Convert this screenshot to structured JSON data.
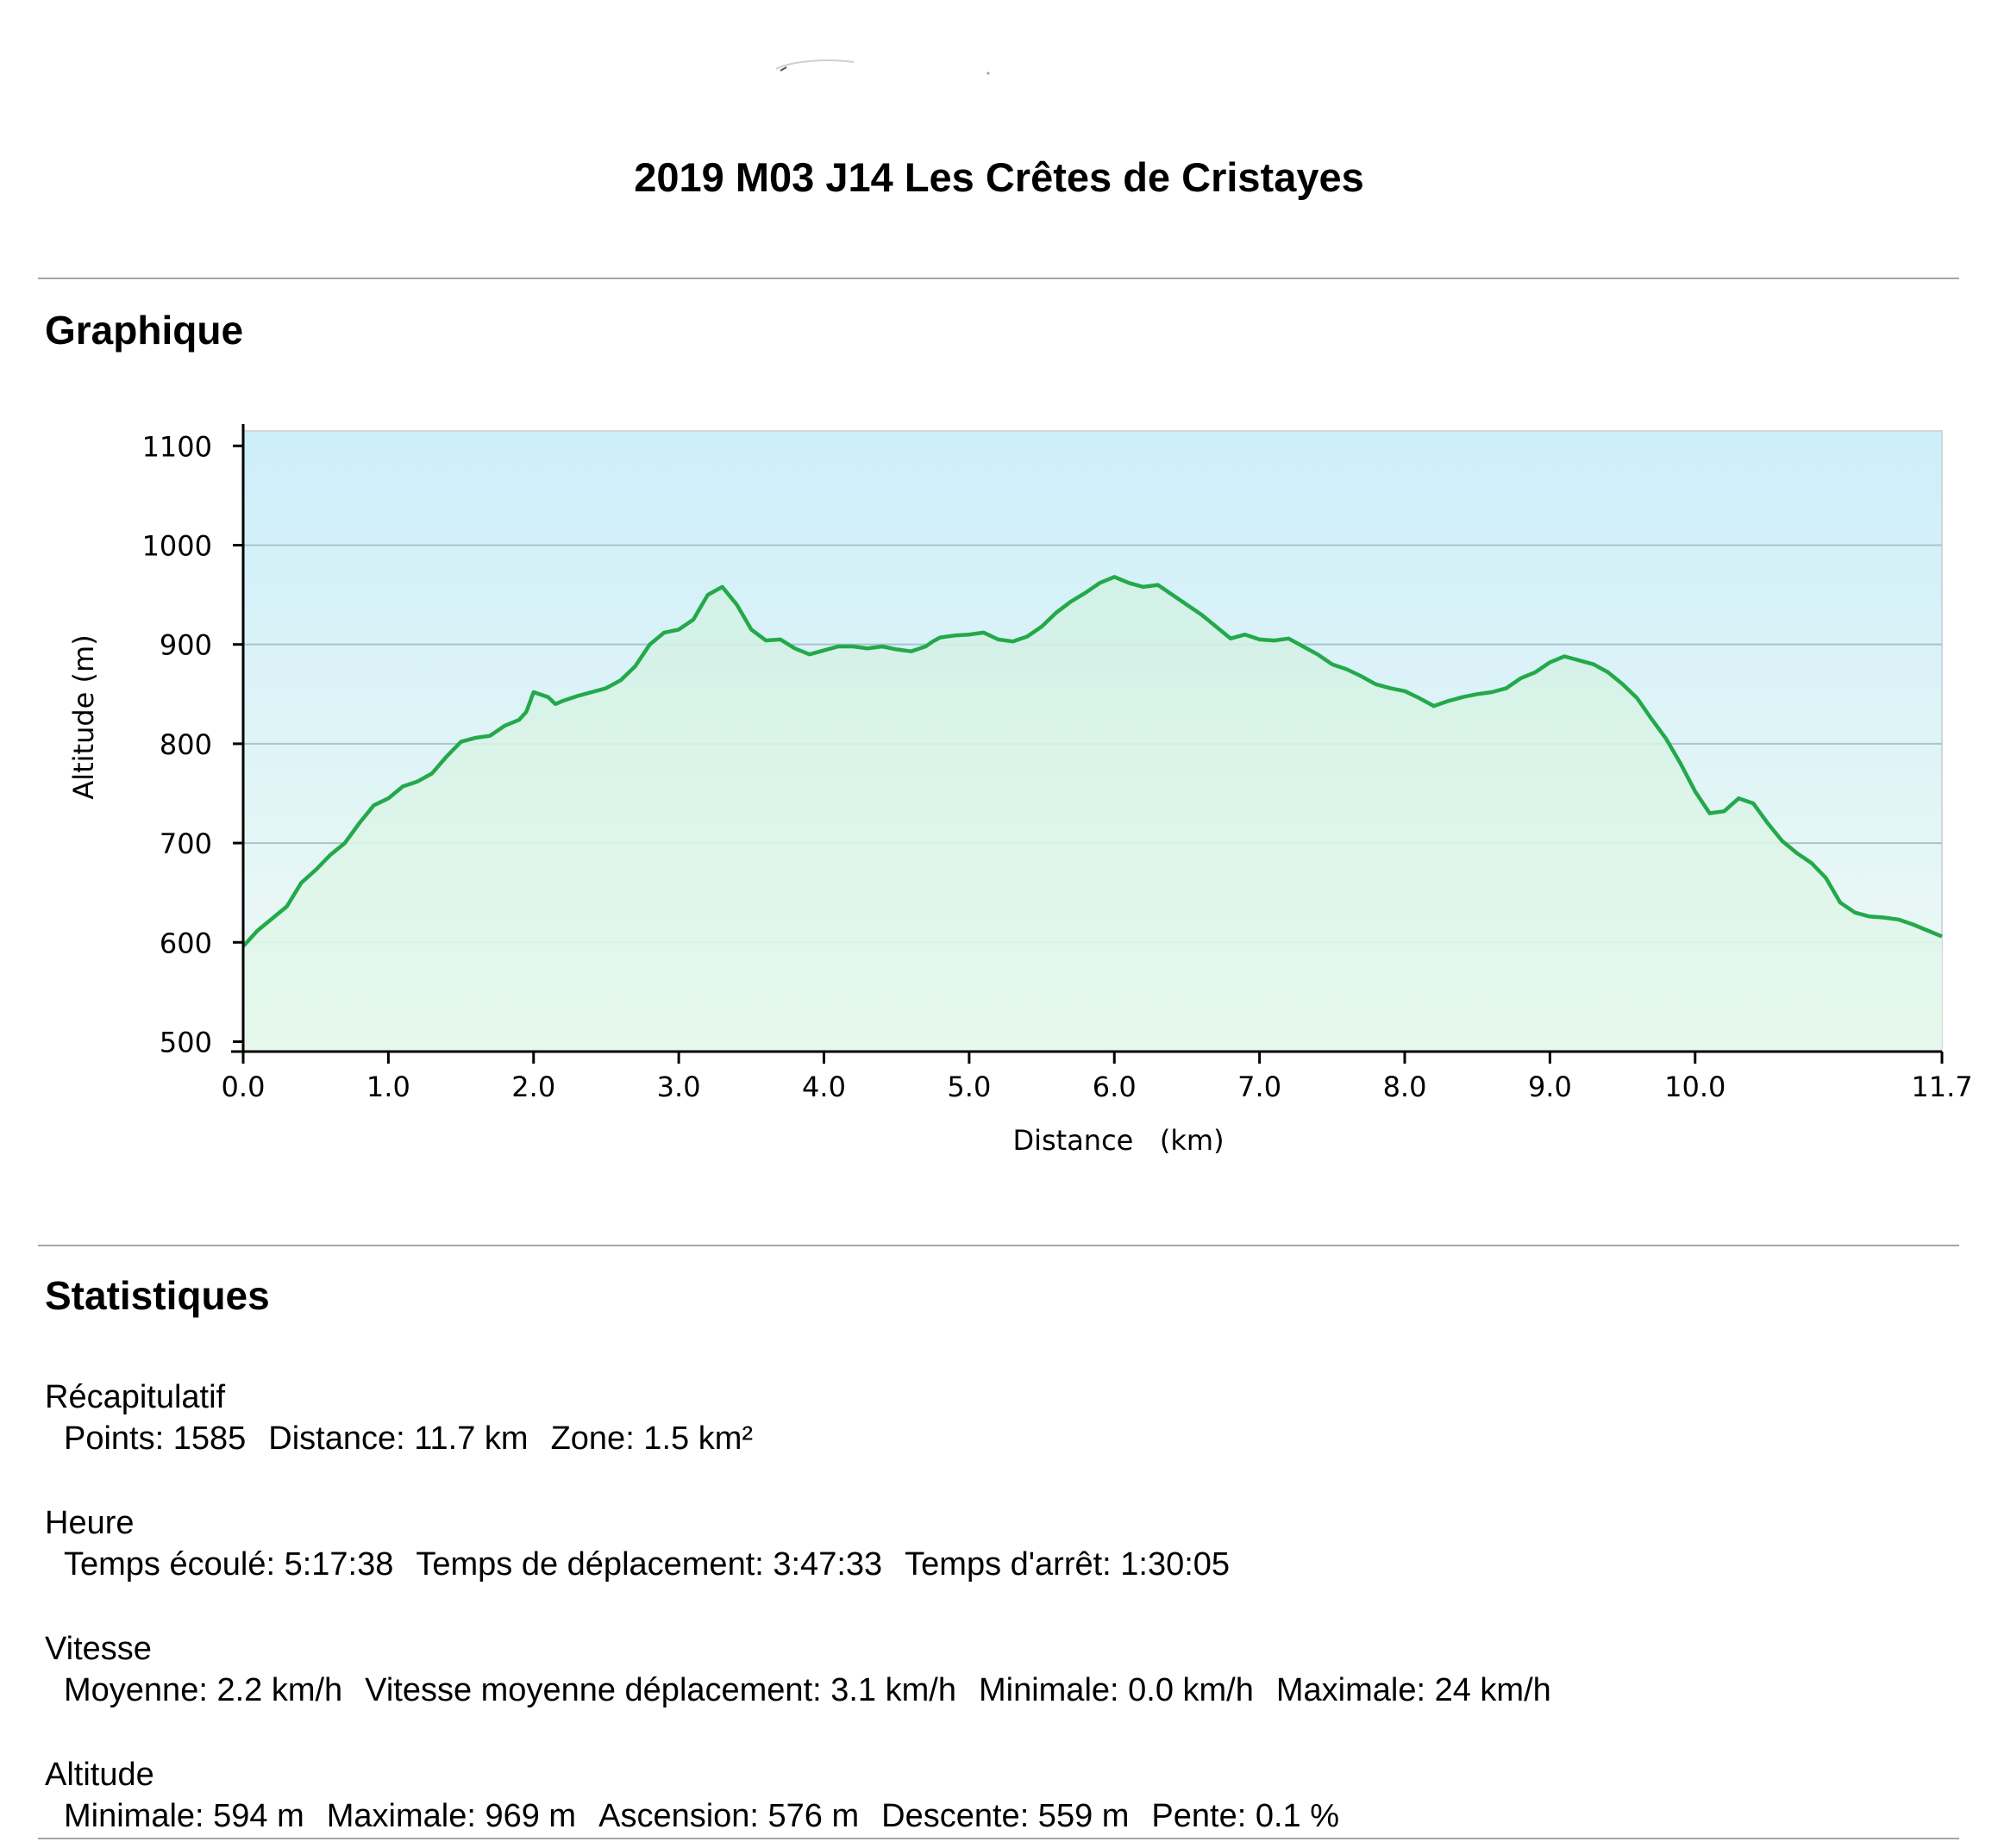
{
  "page": {
    "title": "2019 M03 J14 Les Crêtes de Cristayes"
  },
  "sections": {
    "graph_title": "Graphique",
    "stats_title": "Statistiques"
  },
  "chart_data": {
    "type": "area",
    "title": "",
    "xlabel": "Distance   (km)",
    "ylabel": "Altitude (m)",
    "xlim": [
      0.0,
      11.7
    ],
    "ylim": [
      490,
      1115
    ],
    "xticks": [
      "0.0",
      "1.0",
      "2.0",
      "3.0",
      "4.0",
      "5.0",
      "6.0",
      "7.0",
      "8.0",
      "9.0",
      "10.0",
      "11.7"
    ],
    "xtick_values": [
      0,
      1,
      2,
      3,
      4,
      5,
      6,
      7,
      8,
      9,
      10,
      11.7
    ],
    "yticks": [
      "500",
      "600",
      "700",
      "800",
      "900",
      "1000",
      "1100"
    ],
    "ytick_values": [
      500,
      600,
      700,
      800,
      900,
      1000,
      1100
    ],
    "grid_y": [
      600,
      700,
      800,
      900,
      1000
    ],
    "line_color": "#23a94a",
    "fill_color": "#c8f0d8",
    "sky_top_color": "#cdeefa",
    "sky_bottom_color": "#f0faf4",
    "series": [
      {
        "x": [
          0.0,
          0.1,
          0.2,
          0.3,
          0.4,
          0.5,
          0.6,
          0.7,
          0.8,
          0.9,
          1.0,
          1.1,
          1.2,
          1.3,
          1.4,
          1.5,
          1.6,
          1.7,
          1.8,
          1.9,
          1.95,
          2.0,
          2.1,
          2.15,
          2.2,
          2.3,
          2.4,
          2.5,
          2.6,
          2.7,
          2.8,
          2.9,
          3.0,
          3.1,
          3.2,
          3.3,
          3.4,
          3.5,
          3.6,
          3.7,
          3.8,
          3.9,
          4.0,
          4.1,
          4.2,
          4.3,
          4.4,
          4.5,
          4.6,
          4.7,
          4.75,
          4.8,
          4.9,
          5.0,
          5.1,
          5.2,
          5.3,
          5.4,
          5.5,
          5.6,
          5.7,
          5.8,
          5.9,
          6.0,
          6.1,
          6.2,
          6.3,
          6.4,
          6.5,
          6.6,
          6.7,
          6.8,
          6.9,
          7.0,
          7.1,
          7.2,
          7.3,
          7.4,
          7.5,
          7.6,
          7.7,
          7.8,
          7.9,
          8.0,
          8.1,
          8.2,
          8.3,
          8.4,
          8.5,
          8.6,
          8.7,
          8.8,
          8.9,
          9.0,
          9.1,
          9.2,
          9.3,
          9.4,
          9.5,
          9.6,
          9.7,
          9.8,
          9.9,
          10.0,
          10.1,
          10.2,
          10.3,
          10.4,
          10.5,
          10.6,
          10.7,
          10.8,
          10.9,
          11.0,
          11.1,
          11.2,
          11.3,
          11.4,
          11.5,
          11.6,
          11.7
        ],
        "y": [
          596,
          612,
          624,
          636,
          660,
          673,
          688,
          700,
          720,
          738,
          745,
          757,
          762,
          770,
          787,
          802,
          806,
          808,
          818,
          824,
          832,
          852,
          847,
          840,
          843,
          848,
          852,
          856,
          864,
          878,
          900,
          912,
          915,
          925,
          950,
          958,
          940,
          915,
          904,
          905,
          896,
          890,
          894,
          898,
          898,
          896,
          898,
          895,
          893,
          898,
          903,
          907,
          909,
          910,
          912,
          905,
          903,
          908,
          918,
          932,
          943,
          952,
          962,
          968,
          962,
          958,
          960,
          950,
          940,
          930,
          918,
          906,
          910,
          905,
          904,
          906,
          898,
          890,
          880,
          875,
          868,
          860,
          856,
          853,
          846,
          838,
          843,
          847,
          850,
          852,
          856,
          866,
          872,
          882,
          888,
          884,
          880,
          872,
          860,
          846,
          825,
          805,
          780,
          752,
          730,
          732,
          745,
          740,
          720,
          702,
          690,
          680,
          665,
          640,
          630,
          626,
          625,
          623,
          618,
          612,
          606
        ]
      }
    ]
  },
  "stats": {
    "recap": {
      "label": "Récapitulatif",
      "items": [
        "Points: 1585",
        "Distance: 11.7 km",
        "Zone: 1.5 km²"
      ]
    },
    "heure": {
      "label": "Heure",
      "items": [
        "Temps écoulé: 5:17:38",
        "Temps de déplacement: 3:47:33",
        "Temps d'arrêt: 1:30:05"
      ]
    },
    "vitesse": {
      "label": "Vitesse",
      "items": [
        "Moyenne: 2.2 km/h",
        "Vitesse moyenne déplacement: 3.1 km/h",
        "Minimale: 0.0 km/h",
        "Maximale: 24 km/h"
      ]
    },
    "altitude": {
      "label": "Altitude",
      "items": [
        "Minimale: 594 m",
        "Maximale: 969 m",
        "Ascension: 576 m",
        "Descente: 559 m",
        "Pente: 0.1 %"
      ]
    }
  }
}
